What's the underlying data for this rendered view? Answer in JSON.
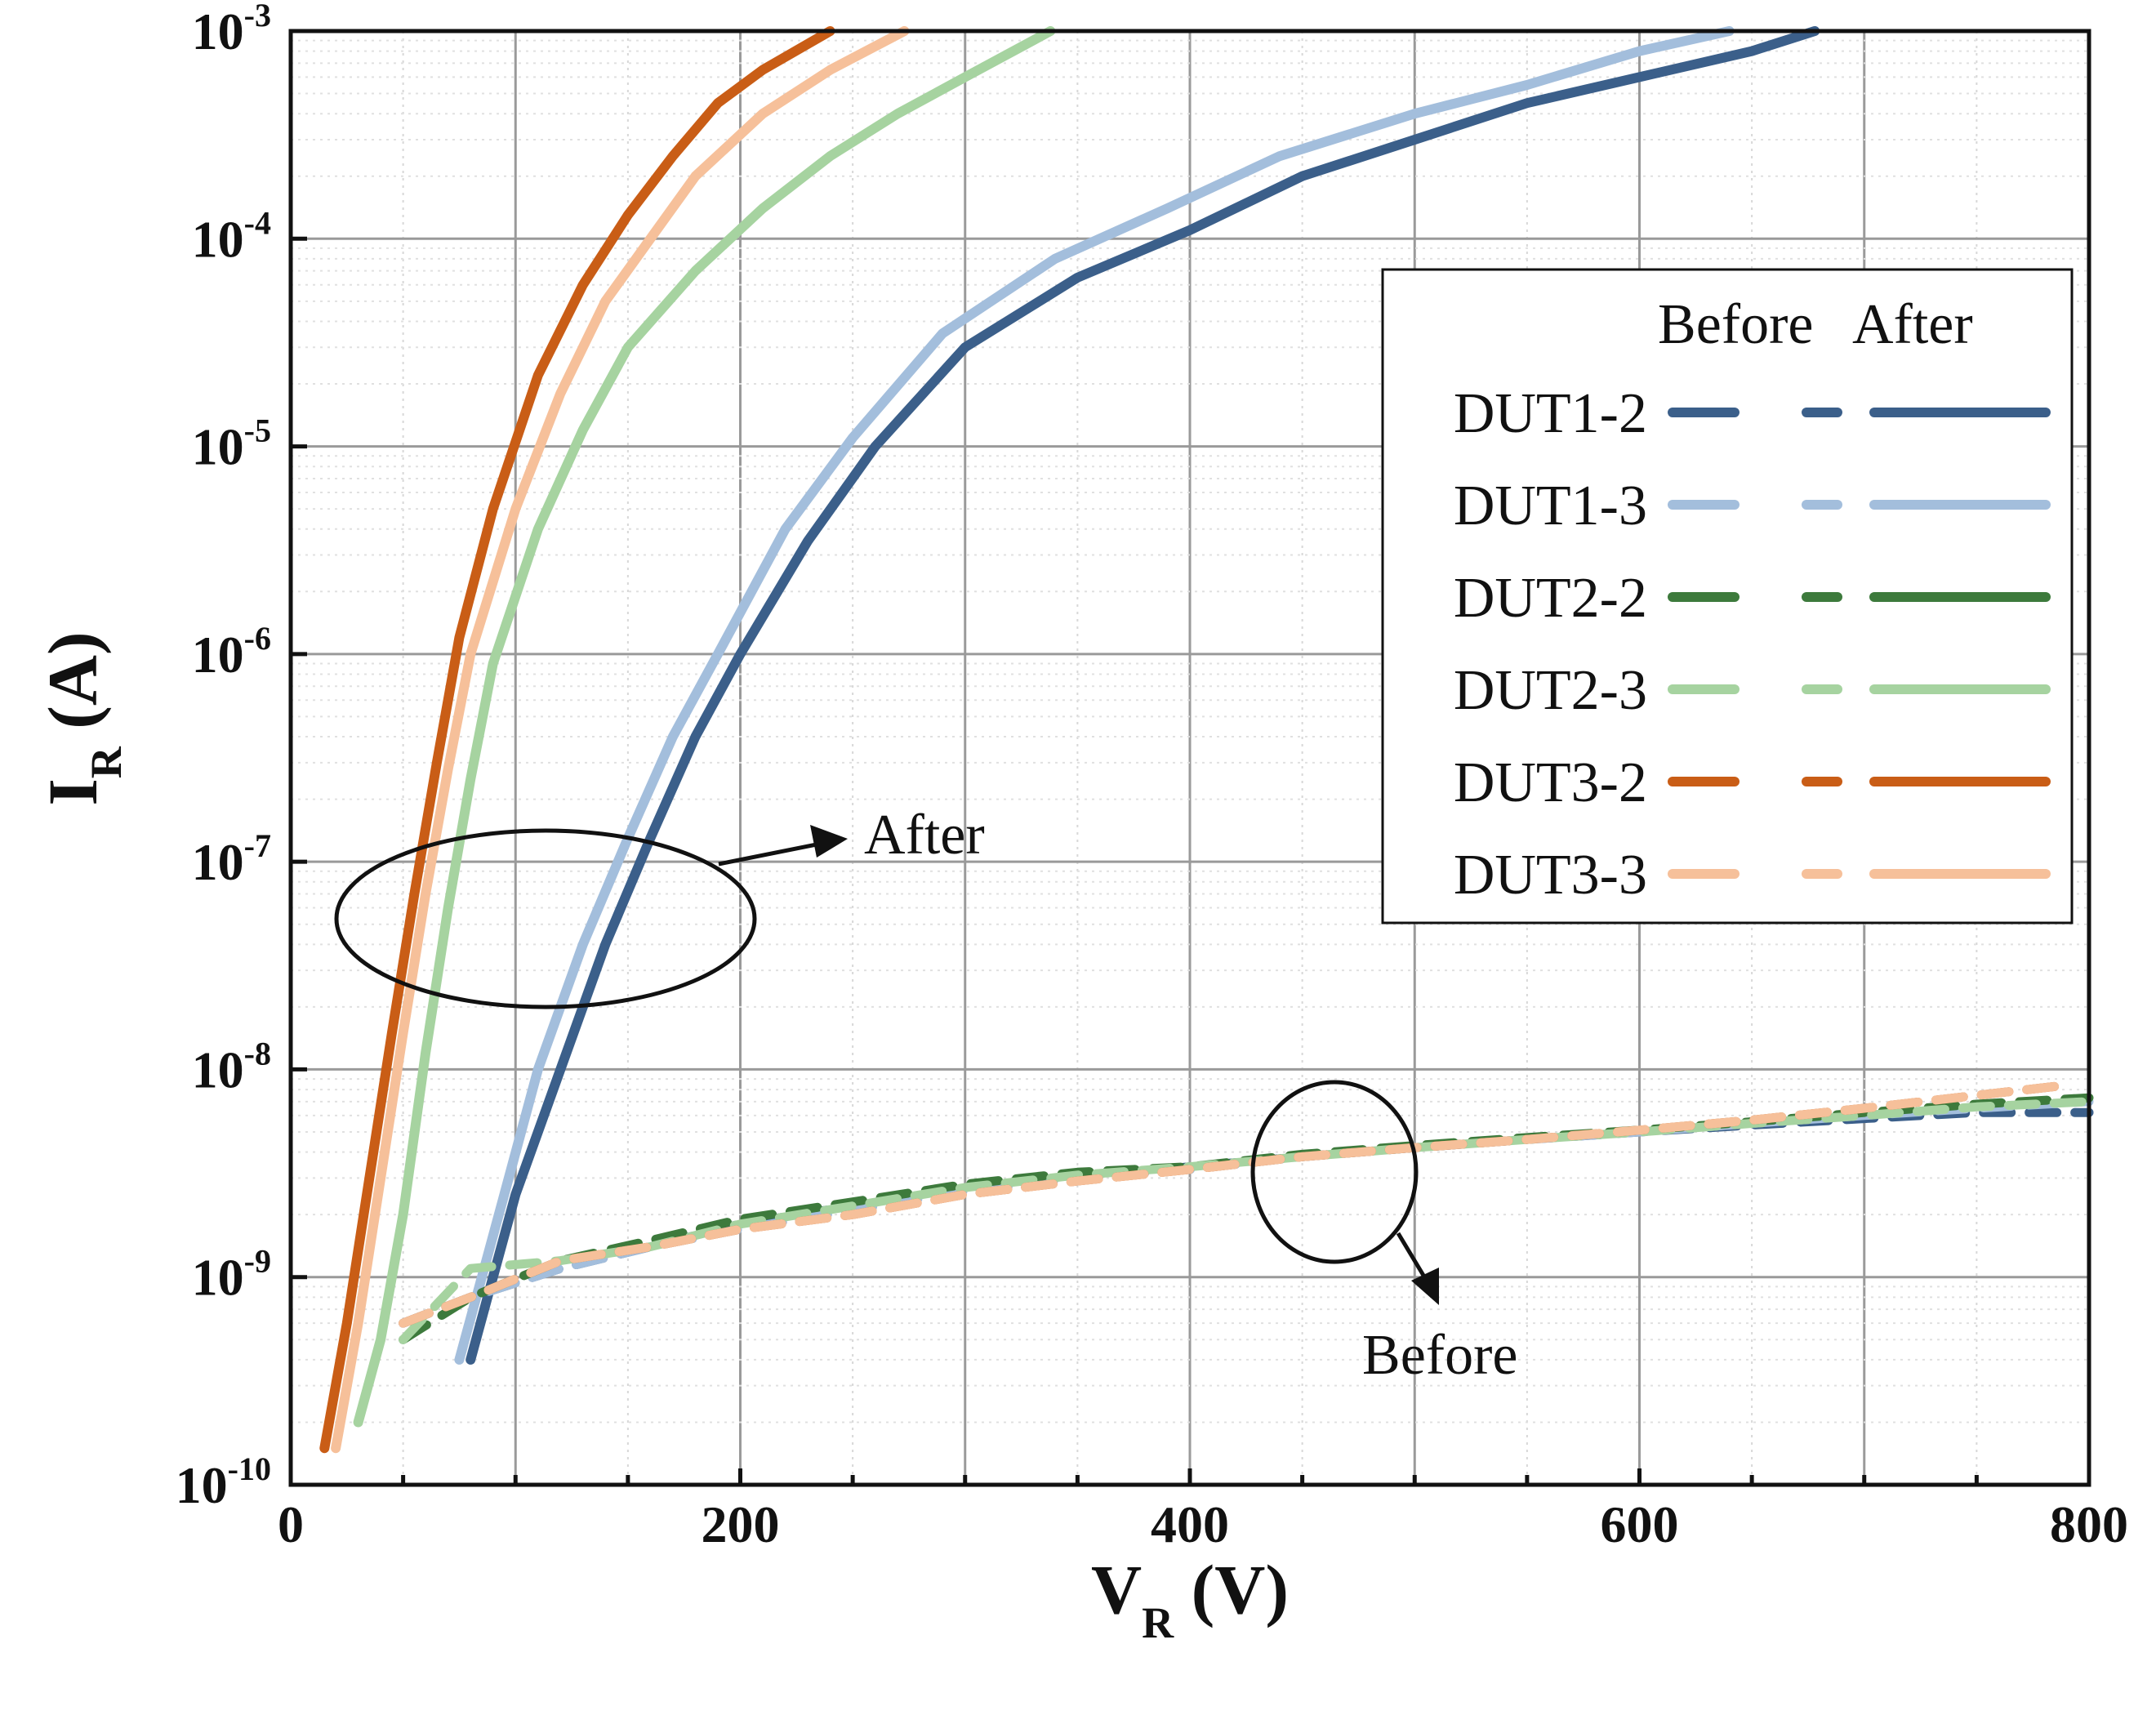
{
  "chart_data": {
    "type": "line",
    "title": "",
    "xlabel": {
      "main": "V",
      "sub": "R",
      "unit": " (V)"
    },
    "ylabel": {
      "main": "I",
      "sub": "R",
      "unit": " (A)"
    },
    "xlim": [
      0,
      800
    ],
    "ylim": [
      1e-10,
      0.001
    ],
    "yscale": "log",
    "grid": true,
    "x_ticks": [
      {
        "value": 0,
        "label": "0"
      },
      {
        "value": 200,
        "label": "200"
      },
      {
        "value": 400,
        "label": "400"
      },
      {
        "value": 600,
        "label": "600"
      },
      {
        "value": 800,
        "label": "800"
      }
    ],
    "y_ticks": [
      {
        "value": 1e-10,
        "base": "10",
        "exp": "-10"
      },
      {
        "value": 1e-09,
        "base": "10",
        "exp": "-9"
      },
      {
        "value": 1e-08,
        "base": "10",
        "exp": "-8"
      },
      {
        "value": 1e-07,
        "base": "10",
        "exp": "-7"
      },
      {
        "value": 1e-06,
        "base": "10",
        "exp": "-6"
      },
      {
        "value": 1e-05,
        "base": "10",
        "exp": "-5"
      },
      {
        "value": 0.0001,
        "base": "10",
        "exp": "-4"
      },
      {
        "value": 0.001,
        "base": "10",
        "exp": "-3"
      }
    ],
    "legend": {
      "position": "right",
      "header_before": "Before",
      "header_after": "After",
      "entries": [
        {
          "name": "DUT1-2",
          "color": "#3b5f8a"
        },
        {
          "name": "DUT1-3",
          "color": "#a3bedc"
        },
        {
          "name": "DUT2-2",
          "color": "#3d7a3c"
        },
        {
          "name": "DUT2-3",
          "color": "#a6d3a0"
        },
        {
          "name": "DUT3-2",
          "color": "#c95d16"
        },
        {
          "name": "DUT3-3",
          "color": "#f6c09a"
        }
      ]
    },
    "series": [
      {
        "name": "DUT1-2 After",
        "color": "#3b5f8a",
        "style": "solid",
        "x": [
          80,
          90,
          100,
          120,
          140,
          160,
          180,
          200,
          230,
          260,
          300,
          350,
          400,
          450,
          500,
          550,
          600,
          650,
          678
        ],
        "y": [
          4e-10,
          1e-09,
          2.5e-09,
          1e-08,
          4e-08,
          1.3e-07,
          4e-07,
          1e-06,
          3.5e-06,
          1e-05,
          3e-05,
          6.5e-05,
          0.00011,
          0.0002,
          0.0003,
          0.00045,
          0.0006,
          0.0008,
          0.001
        ]
      },
      {
        "name": "DUT1-3 After",
        "color": "#a3bedc",
        "style": "solid",
        "x": [
          75,
          85,
          95,
          110,
          130,
          150,
          170,
          190,
          220,
          250,
          290,
          340,
          390,
          440,
          500,
          550,
          600,
          640
        ],
        "y": [
          4e-10,
          1e-09,
          2.5e-09,
          1e-08,
          4e-08,
          1.3e-07,
          4e-07,
          1e-06,
          4e-06,
          1.1e-05,
          3.5e-05,
          8e-05,
          0.00014,
          0.00025,
          0.0004,
          0.00055,
          0.0008,
          0.001
        ]
      },
      {
        "name": "DUT2-3 After",
        "color": "#a6d3a0",
        "style": "solid",
        "x": [
          30,
          40,
          50,
          60,
          70,
          80,
          90,
          110,
          130,
          150,
          180,
          210,
          240,
          270,
          300,
          338
        ],
        "y": [
          2e-10,
          5e-10,
          2e-09,
          1.2e-08,
          6e-08,
          2.5e-07,
          9e-07,
          4e-06,
          1.2e-05,
          3e-05,
          7e-05,
          0.00014,
          0.00025,
          0.0004,
          0.0006,
          0.001
        ]
      },
      {
        "name": "DUT3-3 After",
        "color": "#f6c09a",
        "style": "solid",
        "x": [
          20,
          30,
          40,
          50,
          60,
          70,
          80,
          100,
          120,
          140,
          160,
          180,
          210,
          240,
          273
        ],
        "y": [
          1.5e-10,
          6e-10,
          3e-09,
          1.5e-08,
          7e-08,
          2.8e-07,
          1e-06,
          5e-06,
          1.8e-05,
          5e-05,
          0.0001,
          0.0002,
          0.0004,
          0.00065,
          0.001
        ]
      },
      {
        "name": "DUT3-2 After",
        "color": "#c95d16",
        "style": "solid",
        "x": [
          15,
          25,
          35,
          45,
          55,
          65,
          75,
          90,
          110,
          130,
          150,
          170,
          190,
          210,
          240
        ],
        "y": [
          1.5e-10,
          6e-10,
          3e-09,
          1.5e-08,
          7e-08,
          3e-07,
          1.2e-06,
          5e-06,
          2.2e-05,
          6e-05,
          0.00013,
          0.00025,
          0.00045,
          0.00065,
          0.001
        ]
      },
      {
        "name": "DUT1-2 Before",
        "color": "#3b5f8a",
        "style": "dashed",
        "x": [
          50,
          80,
          120,
          160,
          200,
          250,
          300,
          350,
          400,
          450,
          500,
          550,
          600,
          650,
          700,
          750,
          800
        ],
        "y": [
          6e-10,
          8e-10,
          1.1e-09,
          1.4e-09,
          1.8e-09,
          2.2e-09,
          2.6e-09,
          3e-09,
          3.4e-09,
          3.8e-09,
          4.2e-09,
          4.6e-09,
          5e-09,
          5.4e-09,
          5.8e-09,
          6.2e-09,
          6.2e-09
        ]
      },
      {
        "name": "DUT1-3 Before",
        "color": "#a3bedc",
        "style": "dashed",
        "x": [
          50,
          80,
          120,
          160,
          200,
          250,
          300,
          350,
          400,
          450,
          500,
          550,
          600,
          650,
          700,
          750,
          800
        ],
        "y": [
          6e-10,
          8e-10,
          1.1e-09,
          1.4e-09,
          1.7e-09,
          2.1e-09,
          2.6e-09,
          3e-09,
          3.3e-09,
          3.8e-09,
          4.2e-09,
          4.6e-09,
          5e-09,
          5.5e-09,
          6e-09,
          6.5e-09,
          7e-09
        ]
      },
      {
        "name": "DUT2-2 Before",
        "color": "#3d7a3c",
        "style": "dashed",
        "x": [
          50,
          80,
          120,
          160,
          200,
          250,
          300,
          350,
          400,
          450,
          500,
          550,
          600,
          650,
          700,
          750,
          800
        ],
        "y": [
          5e-10,
          8e-10,
          1.2e-09,
          1.5e-09,
          1.9e-09,
          2.3e-09,
          2.8e-09,
          3.2e-09,
          3.4e-09,
          3.9e-09,
          4.3e-09,
          4.7e-09,
          5.1e-09,
          5.6e-09,
          6.2e-09,
          6.8e-09,
          7.3e-09
        ]
      },
      {
        "name": "DUT2-3 Before",
        "color": "#a6d3a0",
        "style": "dashed",
        "x": [
          50,
          80,
          120,
          160,
          200,
          250,
          300,
          350,
          400,
          450,
          500,
          550,
          600,
          650,
          700,
          750,
          800
        ],
        "y": [
          5e-10,
          1.1e-09,
          1.2e-09,
          1.4e-09,
          1.8e-09,
          2.2e-09,
          2.7e-09,
          3.1e-09,
          3.4e-09,
          3.8e-09,
          4.2e-09,
          4.6e-09,
          5e-09,
          5.5e-09,
          6e-09,
          6.6e-09,
          7e-09
        ]
      },
      {
        "name": "DUT3-2 Before",
        "color": "#c95d16",
        "style": "dashed",
        "x": [
          50,
          80,
          120,
          160,
          200,
          250,
          300,
          350,
          400,
          450,
          500,
          550,
          600,
          650,
          700,
          750,
          790
        ],
        "y": [
          6e-10,
          8e-10,
          1.2e-09,
          1.4e-09,
          1.7e-09,
          2e-09,
          2.5e-09,
          2.9e-09,
          3.3e-09,
          3.8e-09,
          4.2e-09,
          4.6e-09,
          5.1e-09,
          5.7e-09,
          6.5e-09,
          7.5e-09,
          8.4e-09
        ]
      },
      {
        "name": "DUT3-3 Before",
        "color": "#f6c09a",
        "style": "dashed",
        "x": [
          50,
          80,
          120,
          160,
          200,
          250,
          300,
          350,
          400,
          450,
          500,
          550,
          600,
          650,
          700,
          750,
          790
        ],
        "y": [
          6e-10,
          8e-10,
          1.2e-09,
          1.4e-09,
          1.7e-09,
          2e-09,
          2.5e-09,
          2.9e-09,
          3.3e-09,
          3.8e-09,
          4.2e-09,
          4.6e-09,
          5.1e-09,
          5.7e-09,
          6.5e-09,
          7.5e-09,
          8.4e-09
        ]
      }
    ],
    "annotations": [
      {
        "text": "After",
        "ellipse_center": [
          113,
          1e-07
        ]
      },
      {
        "text": "Before",
        "ellipse_center": [
          465,
          3.6e-09
        ]
      }
    ]
  }
}
